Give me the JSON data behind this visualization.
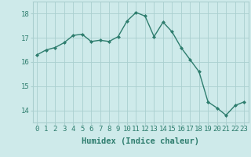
{
  "x": [
    0,
    1,
    2,
    3,
    4,
    5,
    6,
    7,
    8,
    9,
    10,
    11,
    12,
    13,
    14,
    15,
    16,
    17,
    18,
    19,
    20,
    21,
    22,
    23
  ],
  "y": [
    16.3,
    16.5,
    16.6,
    16.8,
    17.1,
    17.15,
    16.85,
    16.9,
    16.85,
    17.05,
    17.7,
    18.05,
    17.9,
    17.05,
    17.65,
    17.25,
    16.6,
    16.1,
    15.6,
    14.35,
    14.1,
    13.8,
    14.2,
    14.35
  ],
  "line_color": "#2e7d6e",
  "marker": "D",
  "marker_size": 2.0,
  "bg_color": "#ceeaea",
  "grid_color": "#aacfcf",
  "xlabel": "Humidex (Indice chaleur)",
  "xlabel_fontsize": 7.5,
  "ylim": [
    13.5,
    18.5
  ],
  "xlim": [
    -0.5,
    23.5
  ],
  "yticks": [
    14,
    15,
    16,
    17,
    18
  ],
  "xticks": [
    0,
    1,
    2,
    3,
    4,
    5,
    6,
    7,
    8,
    9,
    10,
    11,
    12,
    13,
    14,
    15,
    16,
    17,
    18,
    19,
    20,
    21,
    22,
    23
  ],
  "tick_fontsize": 6.5,
  "line_width": 1.0,
  "text_color": "#2e7d6e"
}
